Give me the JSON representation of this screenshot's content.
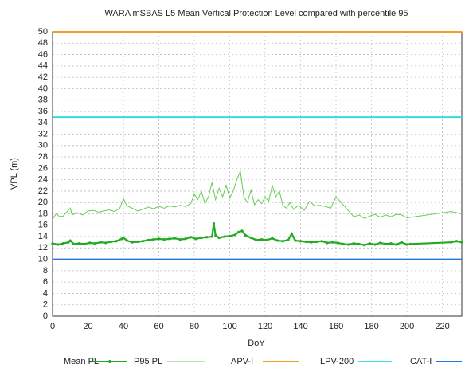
{
  "chart_data": {
    "type": "line",
    "title": "WARA mSBAS L5 Mean Vertical Protection Level compared with percentile 95",
    "x_label": "DoY",
    "y_label": "VPL (m)",
    "xlim": [
      0,
      231
    ],
    "ylim": [
      0,
      50
    ],
    "xticks": [
      0,
      20,
      40,
      60,
      80,
      100,
      120,
      140,
      160,
      180,
      200,
      220
    ],
    "yticks": [
      0,
      2,
      4,
      6,
      8,
      10,
      12,
      14,
      16,
      18,
      20,
      22,
      24,
      26,
      28,
      30,
      32,
      34,
      36,
      38,
      40,
      42,
      44,
      46,
      48,
      50
    ],
    "grid": true,
    "legend": "bottom",
    "series": [
      {
        "name": "Mean PL",
        "color": "#22aa22",
        "markers": true,
        "x": [
          0,
          3,
          6,
          9,
          10,
          12,
          15,
          18,
          21,
          24,
          27,
          30,
          33,
          36,
          39,
          40,
          42,
          45,
          48,
          51,
          54,
          57,
          60,
          63,
          66,
          69,
          72,
          75,
          78,
          81,
          84,
          87,
          90,
          91,
          92,
          94,
          97,
          100,
          103,
          105,
          107,
          109,
          112,
          115,
          118,
          121,
          124,
          127,
          130,
          133,
          135,
          137,
          140,
          143,
          146,
          149,
          152,
          155,
          158,
          161,
          164,
          167,
          170,
          173,
          176,
          179,
          182,
          185,
          188,
          191,
          194,
          197,
          200,
          202,
          225,
          228,
          231
        ],
        "values": [
          12.8,
          12.6,
          12.8,
          13.0,
          13.3,
          12.7,
          12.8,
          12.7,
          12.9,
          12.8,
          13.0,
          12.9,
          13.1,
          13.2,
          13.6,
          13.8,
          13.3,
          13.0,
          13.1,
          13.2,
          13.4,
          13.5,
          13.6,
          13.5,
          13.6,
          13.7,
          13.5,
          13.6,
          13.9,
          13.6,
          13.8,
          13.9,
          14.0,
          16.3,
          14.2,
          13.8,
          14.0,
          14.1,
          14.3,
          14.8,
          15.0,
          14.2,
          13.8,
          13.4,
          13.5,
          13.4,
          13.7,
          13.3,
          13.2,
          13.4,
          14.5,
          13.3,
          13.2,
          13.1,
          13.0,
          13.1,
          13.2,
          12.9,
          13.0,
          12.9,
          12.7,
          12.6,
          12.8,
          12.7,
          12.5,
          12.8,
          12.6,
          12.9,
          12.7,
          12.8,
          12.6,
          13.0,
          12.6,
          12.7,
          13.0,
          13.2,
          13.0
        ]
      },
      {
        "name": "P95 PL",
        "color": "#66cc55",
        "markers": false,
        "x": [
          0,
          2,
          4,
          6,
          8,
          10,
          11,
          14,
          17,
          20,
          23,
          26,
          29,
          32,
          35,
          38,
          40,
          42,
          45,
          48,
          51,
          54,
          57,
          60,
          63,
          66,
          69,
          72,
          75,
          78,
          80,
          82,
          84,
          86,
          88,
          90,
          92,
          94,
          96,
          98,
          100,
          102,
          104,
          106,
          108,
          110,
          112,
          114,
          116,
          118,
          120,
          122,
          124,
          126,
          128,
          130,
          132,
          134,
          136,
          139,
          142,
          145,
          148,
          151,
          154,
          157,
          160,
          170,
          173,
          176,
          179,
          182,
          185,
          188,
          191,
          194,
          197,
          200,
          225,
          228,
          231
        ],
        "values": [
          17.0,
          18.0,
          17.5,
          17.6,
          18.3,
          19.0,
          17.8,
          18.2,
          17.8,
          18.5,
          18.6,
          18.3,
          18.5,
          18.7,
          18.4,
          19.0,
          20.7,
          19.4,
          19.0,
          18.5,
          18.8,
          19.2,
          18.9,
          19.3,
          19.0,
          19.4,
          19.2,
          19.5,
          19.3,
          19.8,
          21.5,
          20.5,
          22.0,
          19.8,
          21.0,
          23.5,
          20.5,
          22.5,
          21.0,
          23.0,
          20.8,
          22.0,
          24.0,
          25.5,
          21.0,
          20.0,
          22.2,
          19.6,
          20.5,
          19.8,
          21.0,
          20.2,
          23.0,
          21.0,
          22.0,
          19.5,
          19.0,
          20.0,
          18.8,
          19.5,
          18.6,
          20.2,
          19.4,
          19.5,
          19.3,
          19.0,
          21.0,
          17.5,
          17.8,
          17.2,
          17.6,
          17.9,
          17.4,
          17.8,
          17.5,
          17.9,
          17.8,
          17.3,
          18.4,
          18.2,
          18.0
        ]
      },
      {
        "name": "APV-I",
        "color": "#f0a020",
        "level": 50
      },
      {
        "name": "LPV-200",
        "color": "#33dde0",
        "level": 35
      },
      {
        "name": "CAT-I",
        "color": "#2277dd",
        "level": 10
      }
    ]
  }
}
